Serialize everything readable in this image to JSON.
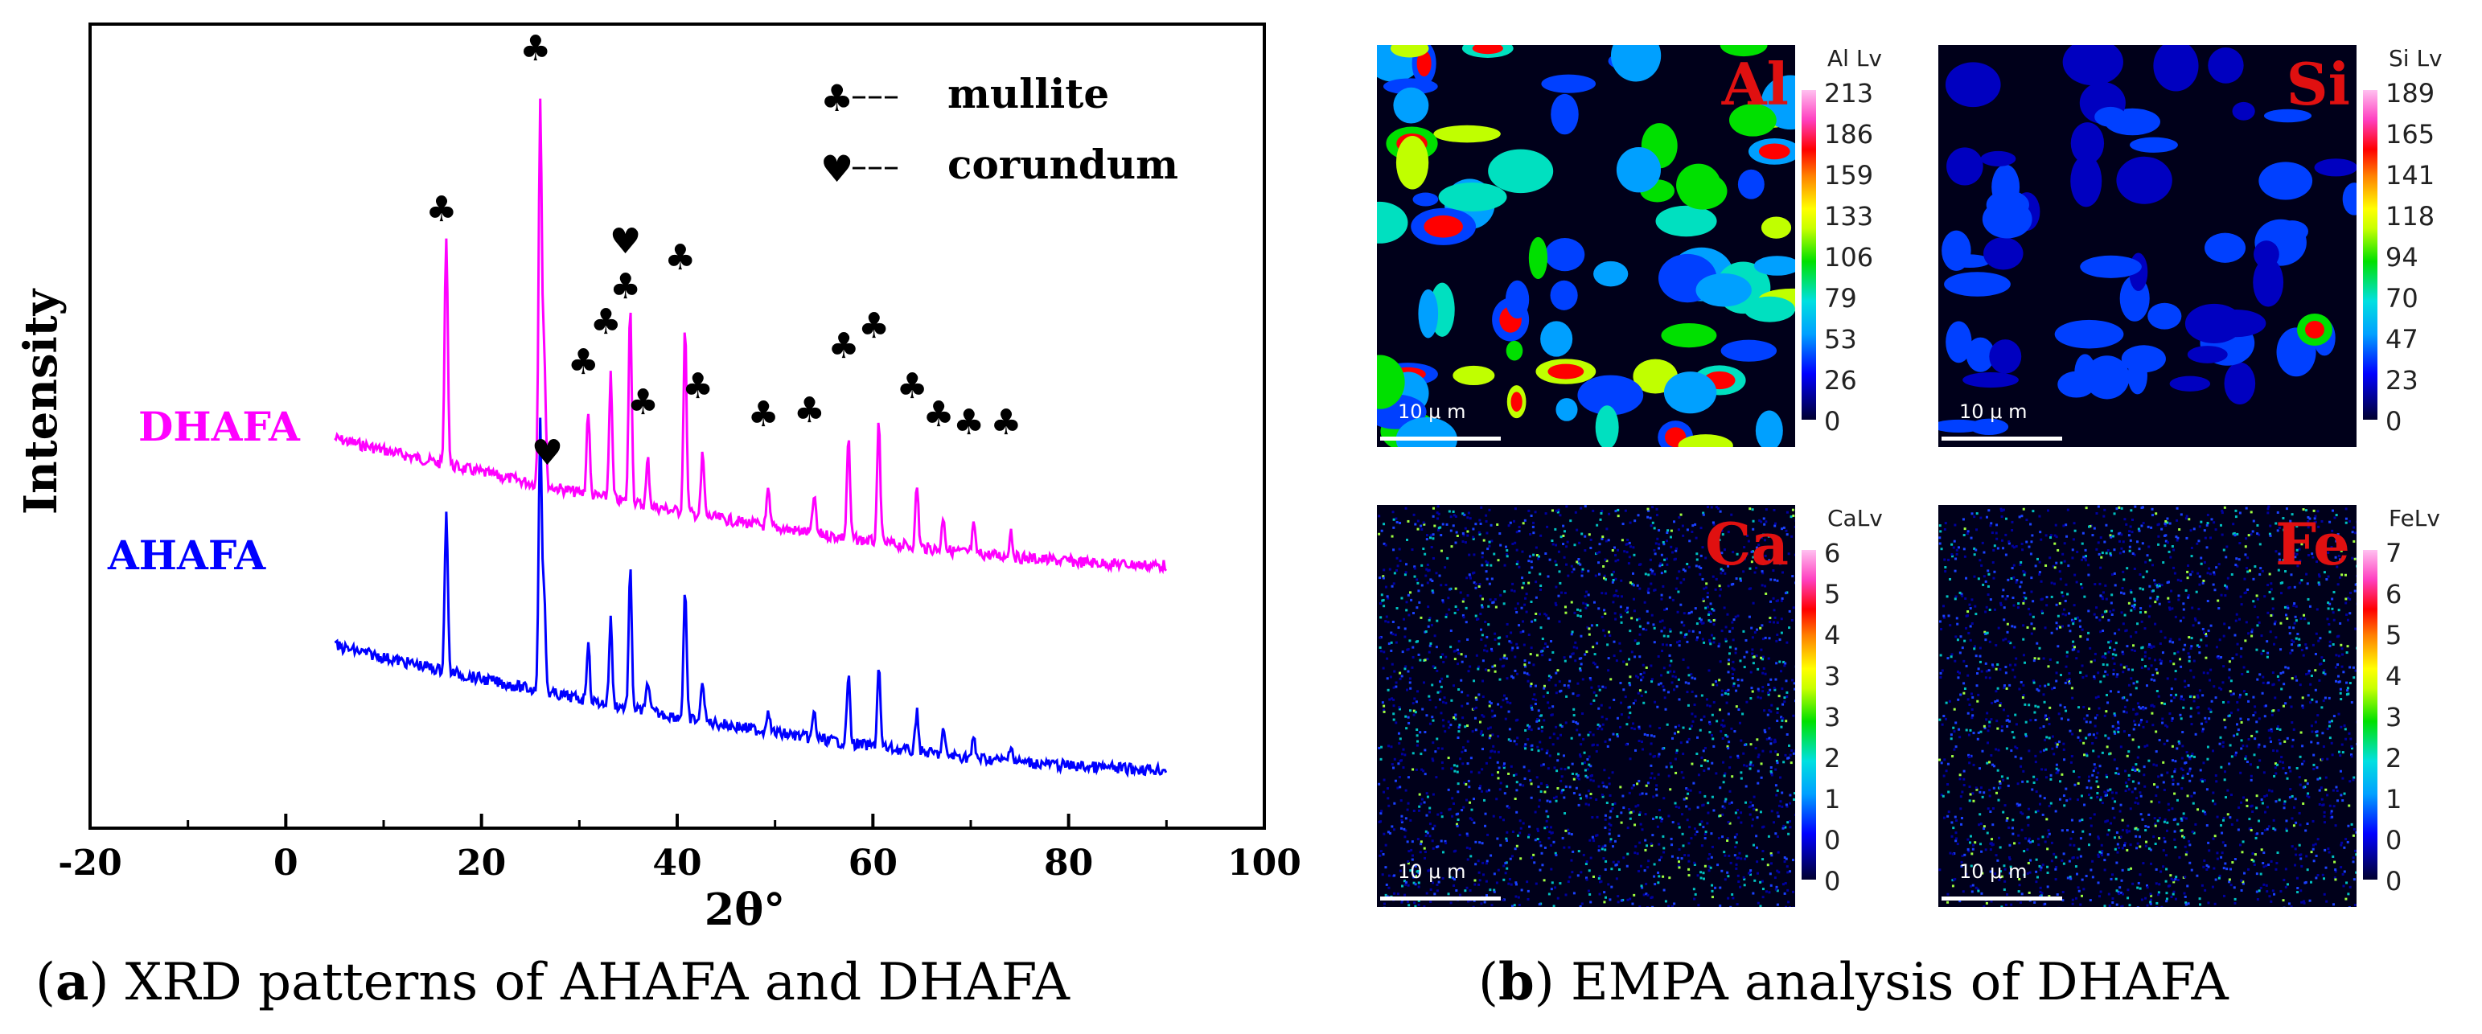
{
  "chart_data": [
    {
      "type": "line",
      "title": "",
      "xlabel": "2θ°",
      "ylabel": "Intensity",
      "xlim": [
        -20,
        100
      ],
      "x_ticks": [
        -20,
        0,
        20,
        40,
        60,
        80,
        100
      ],
      "x_tick_labels": [
        "-20",
        "0",
        "20",
        "40",
        "60",
        "80",
        "100"
      ],
      "series": [
        {
          "name": "DHAFA",
          "color": "#ff00ff",
          "x_range": [
            5,
            90
          ],
          "baseline_start": 0.62,
          "baseline_end": 0.25
        },
        {
          "name": "AHAFA",
          "color": "#0000ff",
          "x_range": [
            5,
            90
          ],
          "baseline_start": 0.42,
          "baseline_end": 0.02
        }
      ],
      "peaks": [
        {
          "x": 16.4,
          "height": 0.6,
          "phase": "mullite"
        },
        {
          "x": 26.0,
          "height": 1.0,
          "phase": "mullite"
        },
        {
          "x": 26.4,
          "height": 0.35,
          "phase": "corundum"
        },
        {
          "x": 30.9,
          "height": 0.22,
          "phase": "mullite"
        },
        {
          "x": 33.2,
          "height": 0.32,
          "phase": "mullite"
        },
        {
          "x": 35.2,
          "height": 0.52,
          "phase": "corundum"
        },
        {
          "x": 37.0,
          "height": 0.12,
          "phase": "mullite"
        },
        {
          "x": 40.8,
          "height": 0.48,
          "phase": "mullite"
        },
        {
          "x": 42.6,
          "height": 0.16,
          "phase": "mullite"
        },
        {
          "x": 49.3,
          "height": 0.09,
          "phase": "mullite"
        },
        {
          "x": 54.0,
          "height": 0.1,
          "phase": "mullite"
        },
        {
          "x": 57.5,
          "height": 0.26,
          "phase": "mullite"
        },
        {
          "x": 60.6,
          "height": 0.31,
          "phase": "mullite"
        },
        {
          "x": 64.5,
          "height": 0.16,
          "phase": "mullite"
        },
        {
          "x": 67.2,
          "height": 0.09,
          "phase": "mullite"
        },
        {
          "x": 70.3,
          "height": 0.07,
          "phase": "mullite"
        },
        {
          "x": 74.1,
          "height": 0.07,
          "phase": "mullite"
        }
      ],
      "legend": [
        {
          "symbol": "♣",
          "label": "mullite"
        },
        {
          "symbol": "♥",
          "label": "corundum"
        }
      ],
      "legend_dash": "–––",
      "series_labels": [
        {
          "text": "DHAFA",
          "color": "#ff00ff"
        },
        {
          "text": "AHAFA",
          "color": "#0000ff"
        }
      ]
    },
    {
      "type": "heatmap",
      "title": "EMPA analysis of DHAFA",
      "panels": [
        {
          "element": "Al",
          "lv_label": "Al Lv",
          "scale_ticks": [
            "213",
            "186",
            "159",
            "133",
            "106",
            "79",
            "53",
            "26",
            "0"
          ],
          "scale_bar": "10 μ m"
        },
        {
          "element": "Si",
          "lv_label": "Si Lv",
          "scale_ticks": [
            "189",
            "165",
            "141",
            "118",
            "94",
            "70",
            "47",
            "23",
            "0"
          ],
          "scale_bar": "10 μ m"
        },
        {
          "element": "Ca",
          "lv_label": "CaLv",
          "scale_ticks": [
            "6",
            "5",
            "4",
            "3",
            "3",
            "2",
            "1",
            "0",
            "0"
          ],
          "scale_bar": "10 μ m"
        },
        {
          "element": "Fe",
          "lv_label": "FeLv",
          "scale_ticks": [
            "7",
            "6",
            "5",
            "4",
            "3",
            "2",
            "1",
            "0",
            "0"
          ],
          "scale_bar": "10 μ m"
        }
      ]
    }
  ],
  "captions": {
    "a": {
      "letter": "a",
      "text": " XRD patterns of AHAFA and DHAFA"
    },
    "b": {
      "letter": "b",
      "text": " EMPA analysis of DHAFA"
    }
  }
}
